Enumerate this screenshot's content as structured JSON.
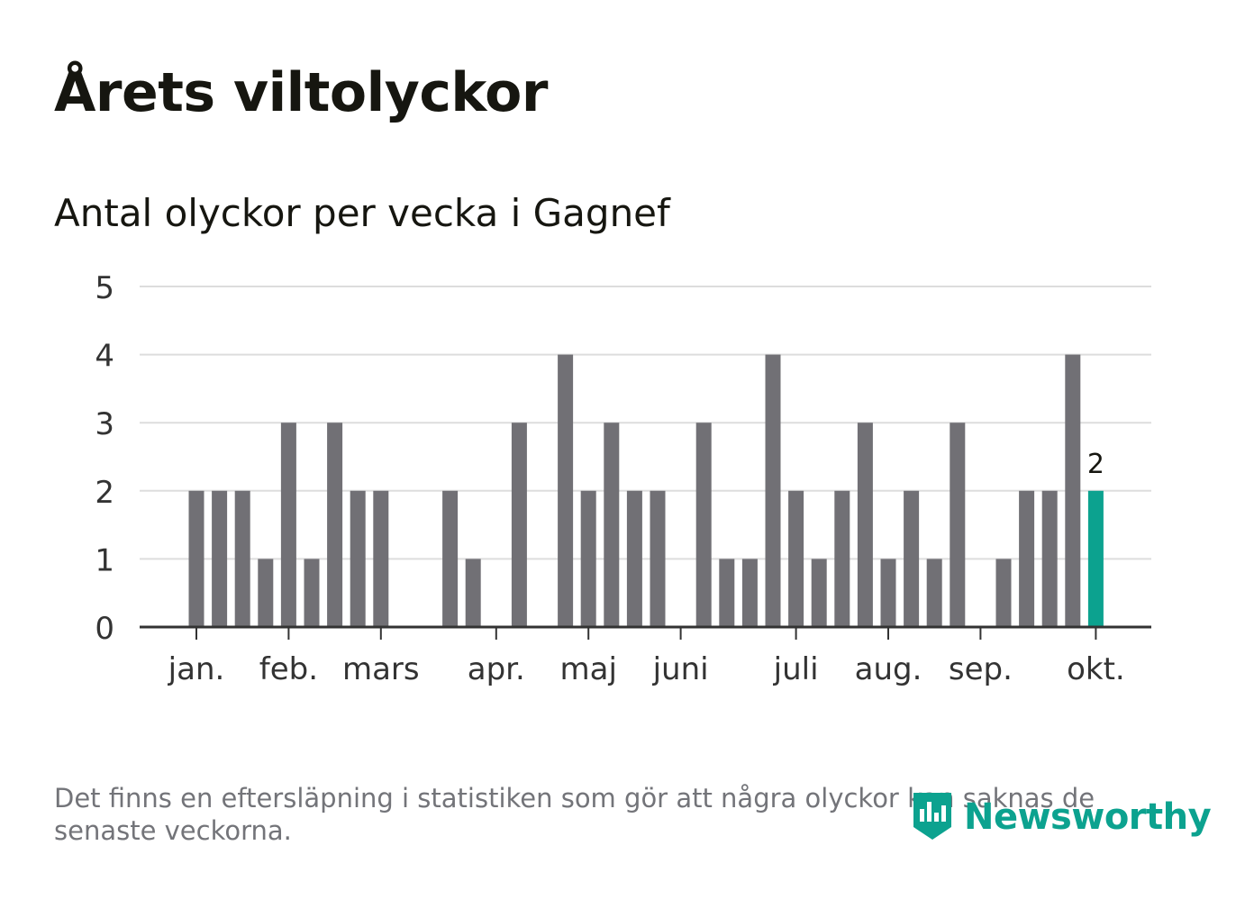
{
  "title": "Årets viltolyckor",
  "subtitle": "Antal olyckor per vecka i Gagnef",
  "footnote": "Det finns en eftersläpning i statistiken som gör att några olyckor kan saknas de senaste veckorna.",
  "logo": {
    "text": "Newsworthy",
    "icon": "newsworthy-logo-icon"
  },
  "colors": {
    "bar": "#717075",
    "highlight": "#0ca28f",
    "grid": "#dddddd",
    "axis": "#333333",
    "text": "#333333"
  },
  "chart_data": {
    "type": "bar",
    "title": "Antal olyckor per vecka i Gagnef",
    "xlabel": "",
    "ylabel": "",
    "ylim": [
      0,
      5
    ],
    "yticks": [
      0,
      1,
      2,
      3,
      4,
      5
    ],
    "x": [
      1,
      2,
      3,
      4,
      5,
      6,
      7,
      8,
      9,
      10,
      11,
      12,
      13,
      14,
      15,
      16,
      17,
      18,
      19,
      20,
      21,
      22,
      23,
      24,
      25,
      26,
      27,
      28,
      29,
      30,
      31,
      32,
      33,
      34,
      35,
      36,
      37,
      38,
      39,
      40
    ],
    "values": [
      2,
      2,
      2,
      1,
      3,
      1,
      3,
      2,
      2,
      0,
      0,
      2,
      1,
      0,
      3,
      0,
      4,
      2,
      3,
      2,
      2,
      0,
      3,
      1,
      1,
      4,
      2,
      1,
      2,
      3,
      1,
      2,
      1,
      3,
      0,
      1,
      2,
      2,
      4,
      2
    ],
    "highlight_index": 39,
    "highlight_label": "2",
    "month_ticks": [
      {
        "label": "jan.",
        "x": 1
      },
      {
        "label": "feb.",
        "x": 5
      },
      {
        "label": "mars",
        "x": 9
      },
      {
        "label": "apr.",
        "x": 14
      },
      {
        "label": "maj",
        "x": 18
      },
      {
        "label": "juni",
        "x": 22
      },
      {
        "label": "juli",
        "x": 27
      },
      {
        "label": "aug.",
        "x": 31
      },
      {
        "label": "sep.",
        "x": 35
      },
      {
        "label": "okt.",
        "x": 40
      }
    ],
    "grid": true
  }
}
